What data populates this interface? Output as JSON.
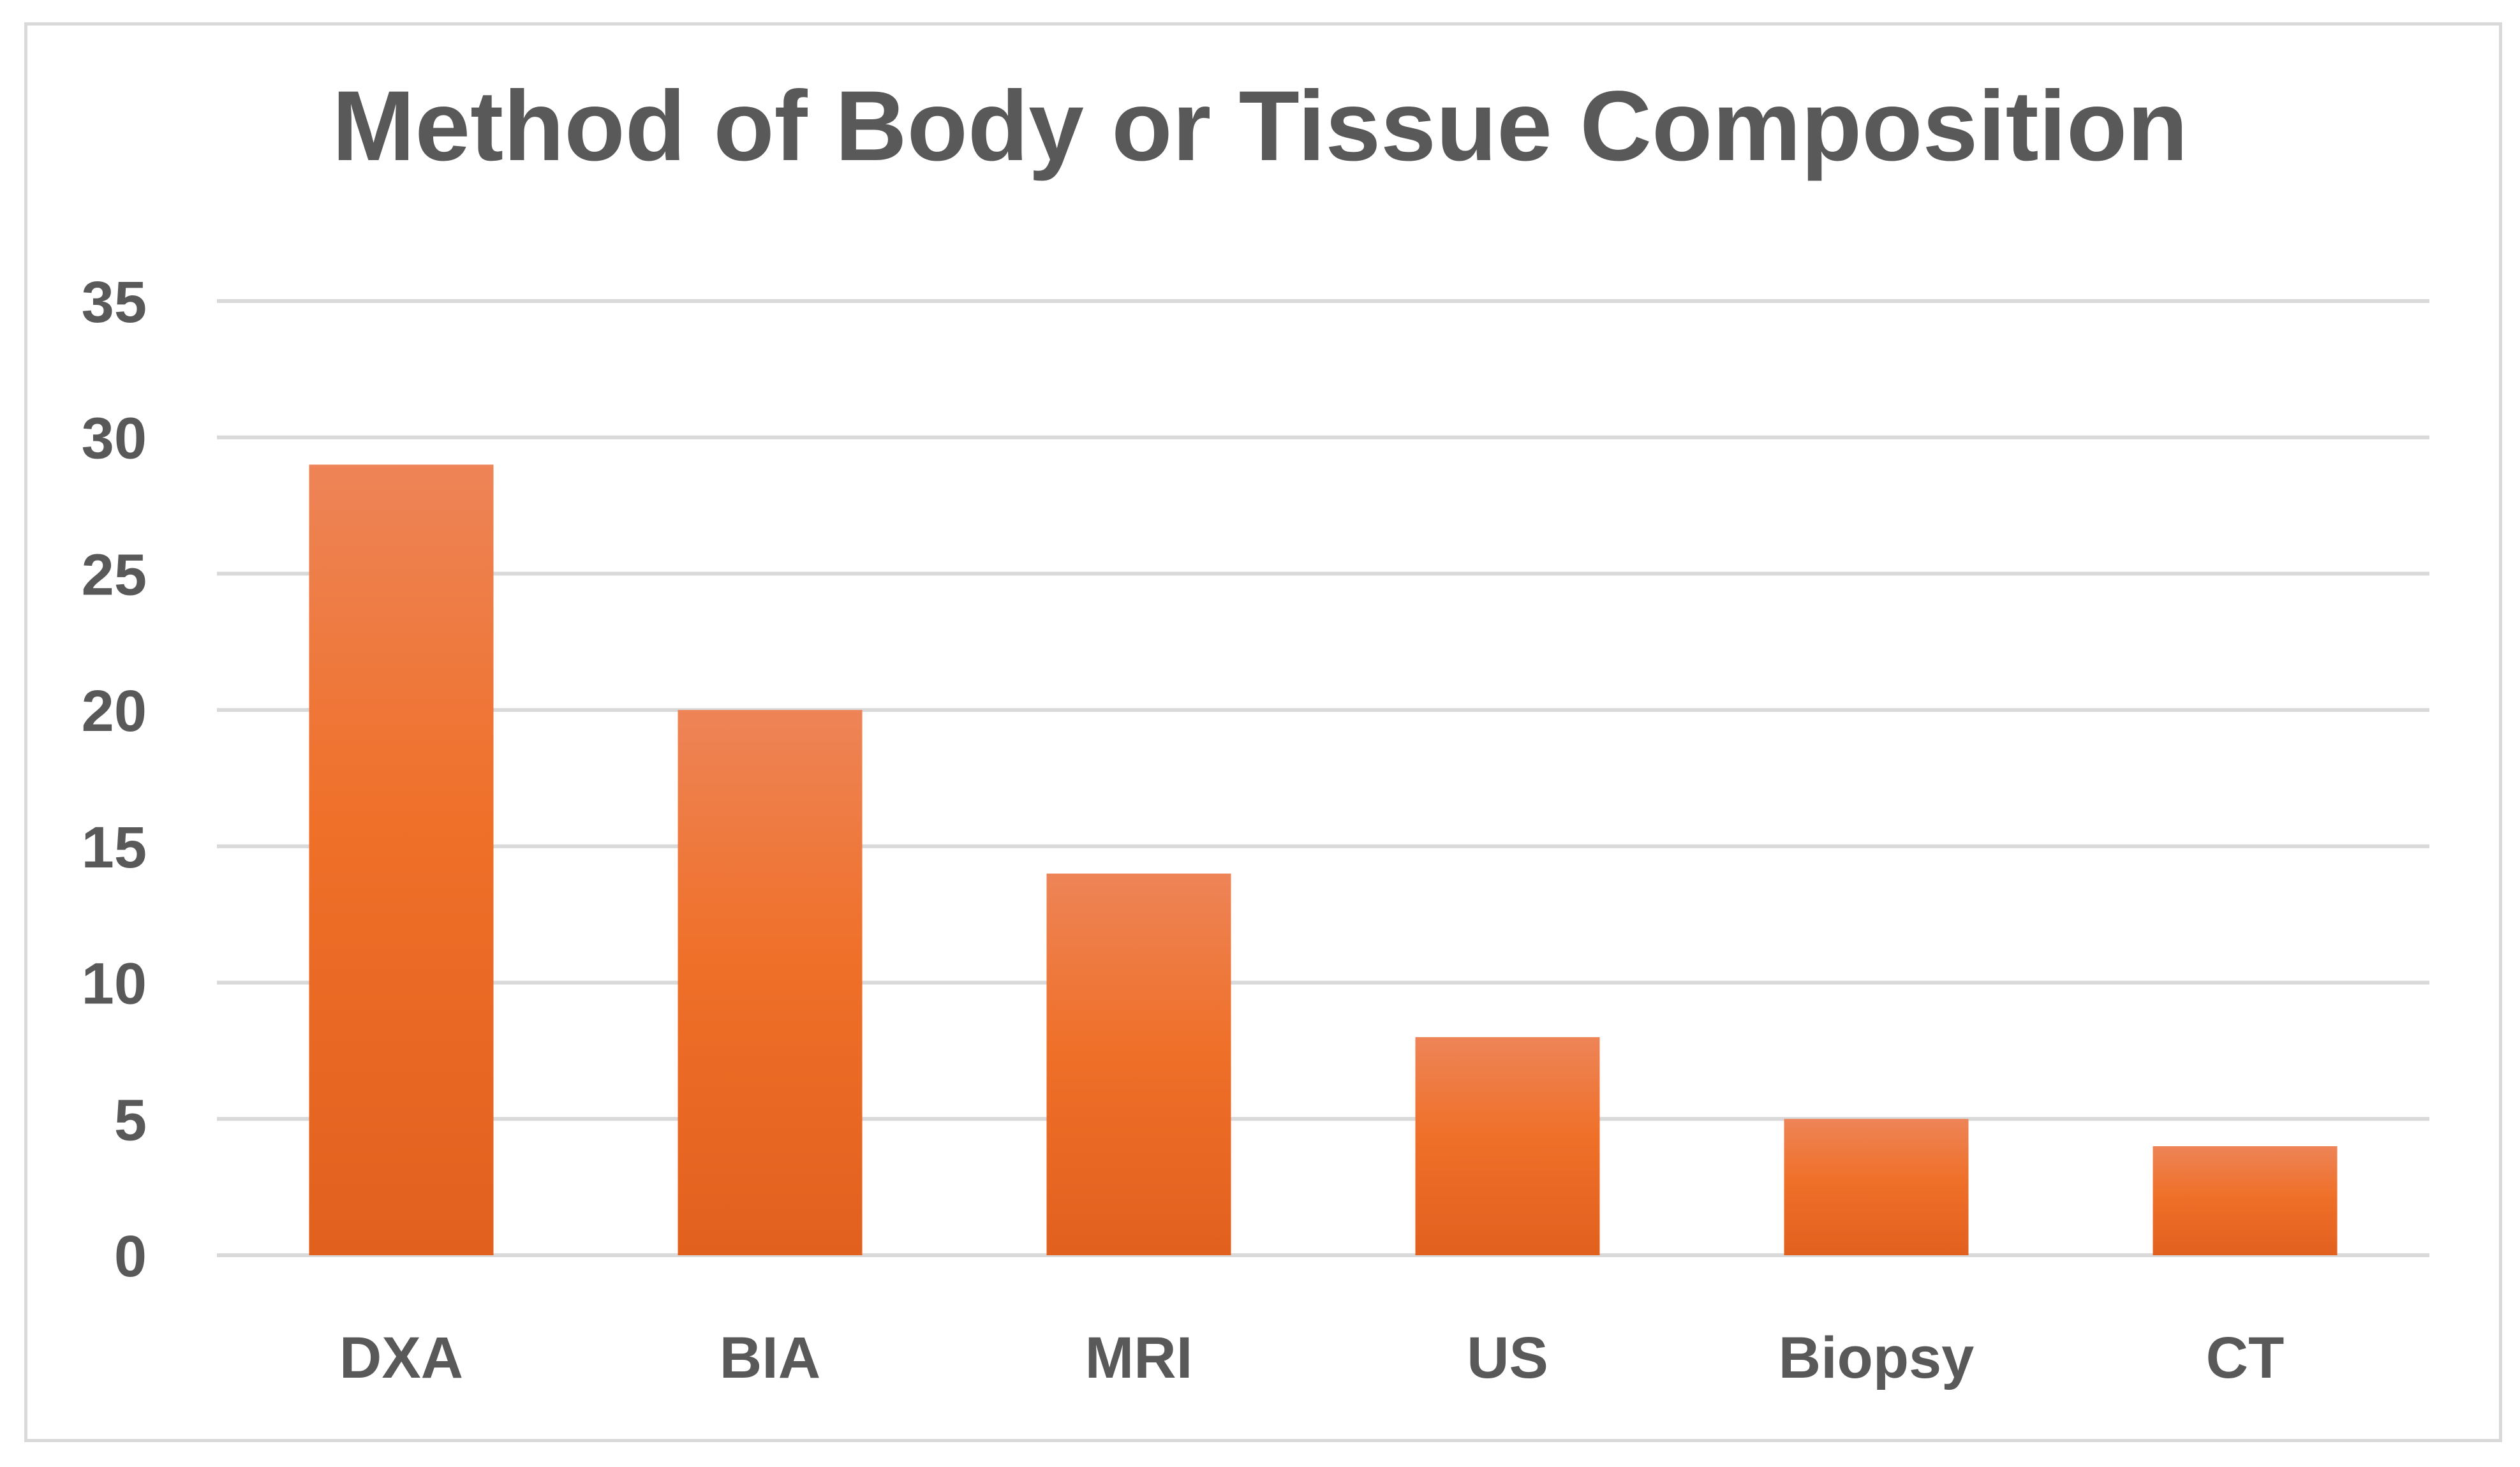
{
  "chart_data": {
    "type": "bar",
    "title": "Method of Body or Tissue Composition",
    "xlabel": "",
    "ylabel": "",
    "categories": [
      "DXA",
      "BIA",
      "MRI",
      "US",
      "Biopsy",
      "CT"
    ],
    "values": [
      29,
      20,
      14,
      8,
      5,
      4
    ],
    "ylim": [
      0,
      35
    ],
    "yticks": [
      "0",
      "5",
      "10",
      "15",
      "20",
      "25",
      "30",
      "35"
    ],
    "grid": true,
    "legend": "none",
    "colors": {
      "bar_top": "#EE8457",
      "bar_mid": "#EF7029",
      "bar_bottom": "#E2601E",
      "grid": "#D9D9D9",
      "text": "#595959"
    }
  }
}
